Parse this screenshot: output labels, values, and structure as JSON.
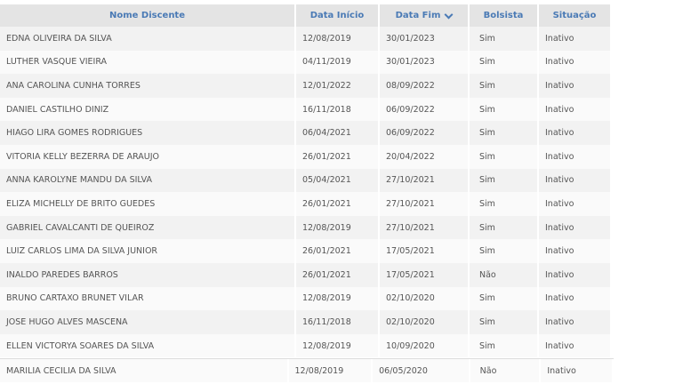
{
  "headers": {
    "nome": "Nome Discente",
    "inicio": "Data Início",
    "fim": "Data Fim",
    "bolsista": "Bolsista",
    "situacao": "Situação"
  },
  "sort": {
    "column": "Data Fim",
    "direction": "desc",
    "icon": "chevron-down-icon"
  },
  "rows": [
    [
      "EDNA OLIVEIRA DA SILVA",
      "12/08/2019",
      "30/01/2023",
      "Sim",
      "Inativo"
    ],
    [
      "LUTHER VASQUE VIEIRA",
      "04/11/2019",
      "30/01/2023",
      "Sim",
      "Inativo"
    ],
    [
      "ANA CAROLINA CUNHA TORRES",
      "12/01/2022",
      "08/09/2022",
      "Sim",
      "Inativo"
    ],
    [
      "DANIEL CASTILHO DINIZ",
      "16/11/2018",
      "06/09/2022",
      "Sim",
      "Inativo"
    ],
    [
      "HIAGO LIRA GOMES RODRIGUES",
      "06/04/2021",
      "06/09/2022",
      "Sim",
      "Inativo"
    ],
    [
      "VITORIA KELLY BEZERRA DE ARAUJO",
      "26/01/2021",
      "20/04/2022",
      "Sim",
      "Inativo"
    ],
    [
      "ANNA KAROLYNE MANDU DA SILVA",
      "05/04/2021",
      "27/10/2021",
      "Sim",
      "Inativo"
    ],
    [
      "ELIZA MICHELLY DE BRITO GUEDES",
      "26/01/2021",
      "27/10/2021",
      "Sim",
      "Inativo"
    ],
    [
      "GABRIEL CAVALCANTI DE QUEIROZ",
      "12/08/2019",
      "27/10/2021",
      "Sim",
      "Inativo"
    ],
    [
      "LUIZ CARLOS LIMA DA SILVA JUNIOR",
      "26/01/2021",
      "17/05/2021",
      "Sim",
      "Inativo"
    ],
    [
      "INALDO PAREDES BARROS",
      "26/01/2021",
      "17/05/2021",
      "Não",
      "Inativo"
    ],
    [
      "BRUNO CARTAXO BRUNET VILAR",
      "12/08/2019",
      "02/10/2020",
      "Sim",
      "Inativo"
    ],
    [
      "JOSE HUGO ALVES MASCENA",
      "16/11/2018",
      "02/10/2020",
      "Sim",
      "Inativo"
    ],
    [
      "ELLEN VICTORYA SOARES DA SILVA",
      "12/08/2019",
      "10/09/2020",
      "Sim",
      "Inativo"
    ],
    [
      "MARILIA CECILIA DA SILVA",
      "12/08/2019",
      "06/05/2020",
      "Não",
      "Inativo"
    ]
  ]
}
